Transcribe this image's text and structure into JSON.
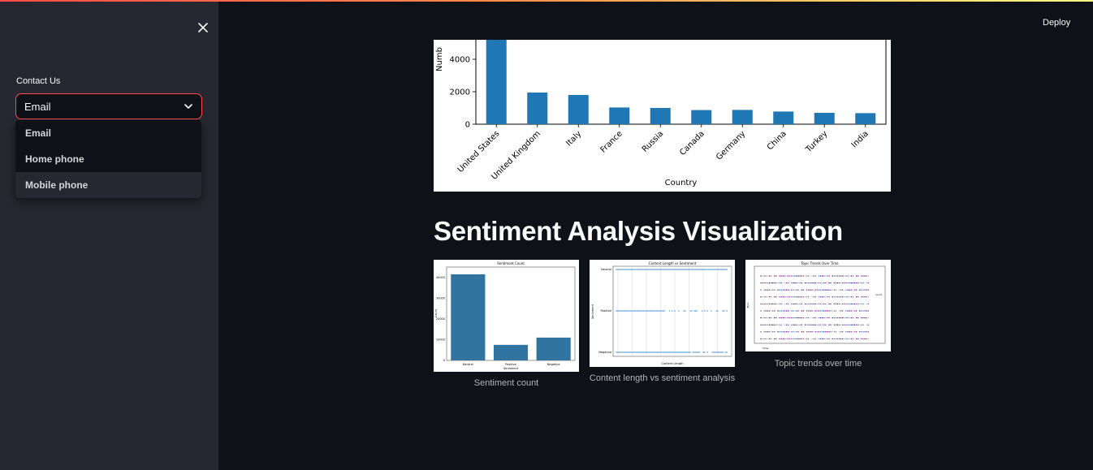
{
  "header": {
    "deploy_label": "Deploy"
  },
  "sidebar": {
    "contact_label": "Contact Us",
    "select_value": "Email",
    "options": [
      "Email",
      "Home phone",
      "Mobile phone"
    ]
  },
  "main": {
    "section_title": "Sentiment Analysis Visualization",
    "captions": [
      "Sentiment count",
      "Content length vs sentiment analysis",
      "Topic trends over time"
    ]
  },
  "colors": {
    "accent": "#ff4b4b",
    "bar": "#1f77b4",
    "seaborn_bar": "#3274a1"
  },
  "chart_data": [
    {
      "type": "bar",
      "categories": [
        "United States",
        "United Kingdom",
        "Italy",
        "France",
        "Russia",
        "Canada",
        "Germany",
        "China",
        "Turkey",
        "India"
      ],
      "values": [
        5200,
        1950,
        1800,
        1030,
        1000,
        870,
        880,
        780,
        700,
        680
      ],
      "xlabel": "Country",
      "ylabel": "Numb",
      "yticks": [
        "0",
        "2000",
        "4000"
      ],
      "ylim": [
        0,
        5200
      ]
    },
    {
      "type": "bar",
      "title": "Sentiment Count",
      "categories": [
        "Neutral",
        "Positive",
        "Negative"
      ],
      "values": [
        41500,
        7500,
        11000
      ],
      "xlabel": "Sentiment",
      "ylabel": "Count",
      "yticks": [
        "0",
        "10000",
        "20000",
        "30000",
        "40000"
      ],
      "ylim": [
        0,
        45000
      ]
    },
    {
      "type": "scatter",
      "title": "Content Length vs Sentiment",
      "categories": [
        "Neutral",
        "Positive",
        "Negative"
      ],
      "xlabel": "Content Length",
      "ylabel": "Sentiment"
    },
    {
      "type": "scatter",
      "title": "Topic Trends Over Time",
      "xlabel": "Time",
      "ylabel": "Topic",
      "legend_title": "count"
    }
  ]
}
